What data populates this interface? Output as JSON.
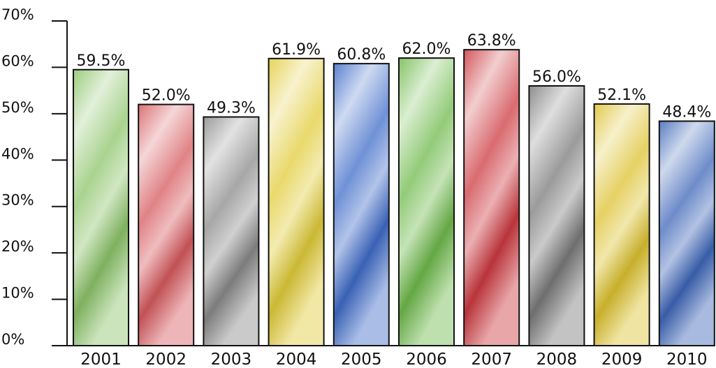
{
  "chart_data": {
    "type": "bar",
    "title": "",
    "xlabel": "",
    "ylabel": "",
    "categories": [
      "2001",
      "2002",
      "2003",
      "2004",
      "2005",
      "2006",
      "2007",
      "2008",
      "2009",
      "2010"
    ],
    "values": [
      59.5,
      52.0,
      49.3,
      61.9,
      60.8,
      62.0,
      63.8,
      56.0,
      52.1,
      48.4
    ],
    "data_labels": [
      "59.5%",
      "52.0%",
      "49.3%",
      "61.9%",
      "60.8%",
      "62.0%",
      "63.8%",
      "56.0%",
      "52.1%",
      "48.4%"
    ],
    "ylim": [
      0,
      70
    ],
    "yticks": [
      0,
      10,
      20,
      30,
      40,
      50,
      60,
      70
    ],
    "ytick_labels": [
      "0%",
      "10%",
      "20%",
      "30%",
      "40%",
      "50%",
      "60%",
      "70%"
    ],
    "grid": false,
    "legend": "none",
    "bar_colors": [
      "#8cc46a",
      "#d65a5e",
      "#8a8a8a",
      "#e2cc3a",
      "#3f6cc8",
      "#6fba4c",
      "#cc3a40",
      "#7a7a7a",
      "#ddc230",
      "#3e66b8"
    ],
    "bar_outline_color": "#111111"
  }
}
